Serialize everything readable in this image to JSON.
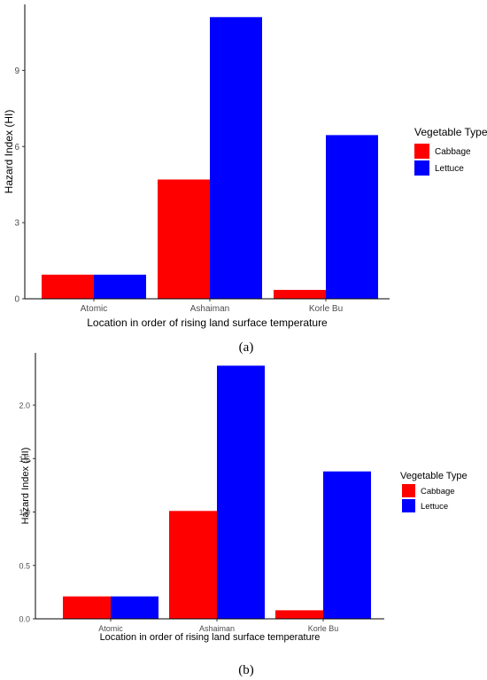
{
  "chart_data": [
    {
      "type": "bar",
      "categories": [
        "Atomic",
        "Ashaiman",
        "Korle Bu"
      ],
      "series": [
        {
          "name": "Cabbage",
          "values": [
            0.95,
            4.7,
            0.35
          ],
          "color": "#ff0000"
        },
        {
          "name": "Lettuce",
          "values": [
            0.95,
            11.1,
            6.45
          ],
          "color": "#0000ff"
        }
      ],
      "xlabel": "Location in order of rising land surface temperature",
      "ylabel": "Hazard Index (HI)",
      "yticks": [
        "0",
        "3",
        "6",
        "9"
      ],
      "ylim": [
        0,
        11.6
      ],
      "legend_title": "Vegetable Type",
      "legend_position": "right",
      "grid": false,
      "caption": "(a)"
    },
    {
      "type": "bar",
      "categories": [
        "Atomic",
        "Ashaiman",
        "Korle Bu"
      ],
      "series": [
        {
          "name": "Cabbage",
          "values": [
            0.21,
            1.01,
            0.08
          ],
          "color": "#ff0000"
        },
        {
          "name": "Lettuce",
          "values": [
            0.21,
            2.37,
            1.38
          ],
          "color": "#0000ff"
        }
      ],
      "xlabel": "Location in order of rising land surface temperature",
      "ylabel": "Hazard Index (HI)",
      "yticks": [
        "0.0",
        "0.5",
        "1.0",
        "1.5",
        "2.0"
      ],
      "ylim": [
        0,
        2.49
      ],
      "legend_title": "Vegetable Type",
      "legend_position": "right",
      "grid": false,
      "caption": "(b)"
    }
  ]
}
